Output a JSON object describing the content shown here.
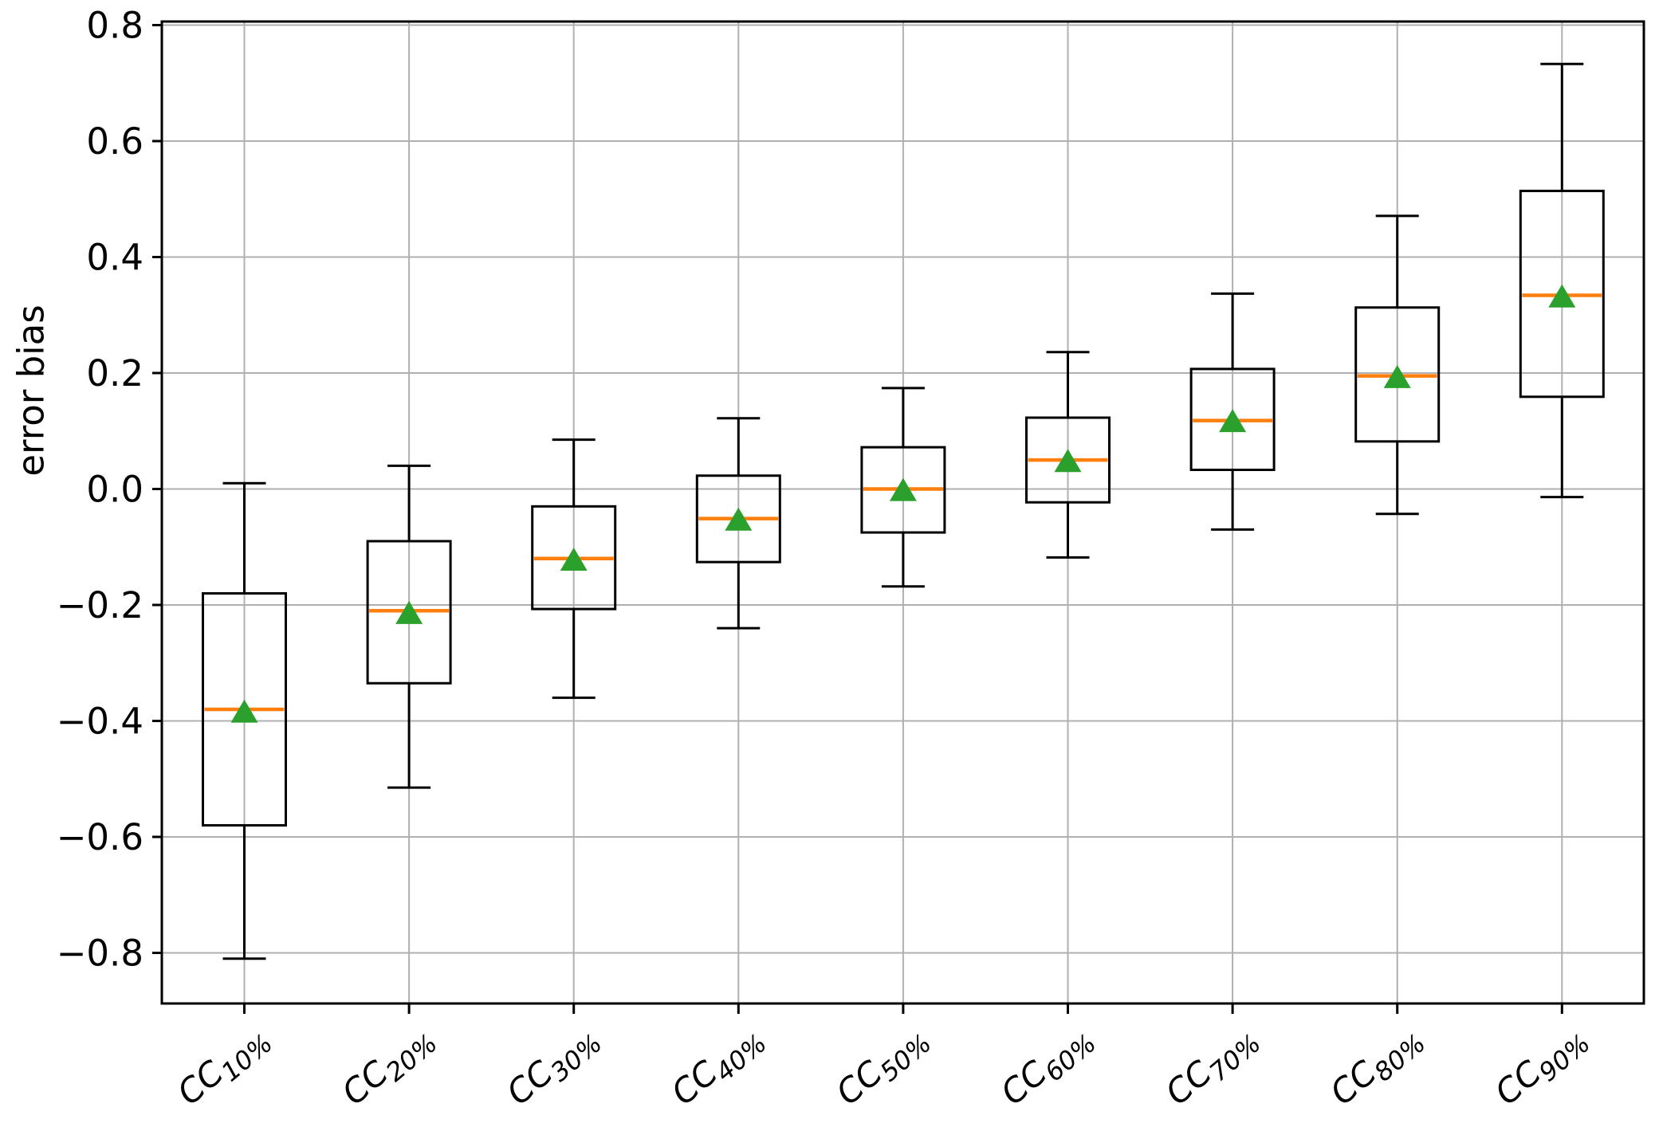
{
  "figure": {
    "ylabel": "error bias",
    "background_color": "#ffffff"
  },
  "chart_data": {
    "type": "boxplot",
    "title": "",
    "xlabel": "",
    "ylabel": "error bias",
    "ylim": [
      -0.89,
      0.81
    ],
    "grid": true,
    "grid_color": "#b0b0b0",
    "spine_color": "#000000",
    "median_color": "#ff7f0e",
    "mean_marker_color": "#2ca02c",
    "mean_marker": "triangle-up",
    "yticks": {
      "values": [
        0.8,
        0.6,
        0.4,
        0.2,
        0.0,
        -0.2,
        -0.4,
        -0.6,
        -0.8
      ],
      "labels": [
        "0.8",
        "0.6",
        "0.4",
        "0.2",
        "0.0",
        "−0.2",
        "−0.4",
        "−0.6",
        "−0.8"
      ]
    },
    "categories": [
      {
        "base": "CC",
        "sub": "10%"
      },
      {
        "base": "CC",
        "sub": "20%"
      },
      {
        "base": "CC",
        "sub": "30%"
      },
      {
        "base": "CC",
        "sub": "40%"
      },
      {
        "base": "CC",
        "sub": "50%"
      },
      {
        "base": "CC",
        "sub": "60%"
      },
      {
        "base": "CC",
        "sub": "70%"
      },
      {
        "base": "CC",
        "sub": "80%"
      },
      {
        "base": "CC",
        "sub": "90%"
      }
    ],
    "boxes": [
      {
        "label": "CC 10%",
        "whisker_low": -0.81,
        "q1": -0.58,
        "median": -0.38,
        "q3": -0.18,
        "whisker_high": 0.01,
        "mean": -0.385
      },
      {
        "label": "CC 20%",
        "whisker_low": -0.515,
        "q1": -0.335,
        "median": -0.21,
        "q3": -0.09,
        "whisker_high": 0.04,
        "mean": -0.215
      },
      {
        "label": "CC 30%",
        "whisker_low": -0.36,
        "q1": -0.207,
        "median": -0.12,
        "q3": -0.03,
        "whisker_high": 0.085,
        "mean": -0.123
      },
      {
        "label": "CC 40%",
        "whisker_low": -0.24,
        "q1": -0.126,
        "median": -0.051,
        "q3": 0.023,
        "whisker_high": 0.122,
        "mean": -0.054
      },
      {
        "label": "CC 50%",
        "whisker_low": -0.168,
        "q1": -0.075,
        "median": 0.0,
        "q3": 0.072,
        "whisker_high": 0.174,
        "mean": -0.003
      },
      {
        "label": "CC 60%",
        "whisker_low": -0.118,
        "q1": -0.023,
        "median": 0.05,
        "q3": 0.123,
        "whisker_high": 0.236,
        "mean": 0.047
      },
      {
        "label": "CC 70%",
        "whisker_low": -0.07,
        "q1": 0.033,
        "median": 0.118,
        "q3": 0.207,
        "whisker_high": 0.337,
        "mean": 0.116
      },
      {
        "label": "CC 80%",
        "whisker_low": -0.043,
        "q1": 0.082,
        "median": 0.195,
        "q3": 0.313,
        "whisker_high": 0.471,
        "mean": 0.192
      },
      {
        "label": "CC 90%",
        "whisker_low": -0.014,
        "q1": 0.159,
        "median": 0.334,
        "q3": 0.514,
        "whisker_high": 0.733,
        "mean": 0.331
      }
    ]
  }
}
